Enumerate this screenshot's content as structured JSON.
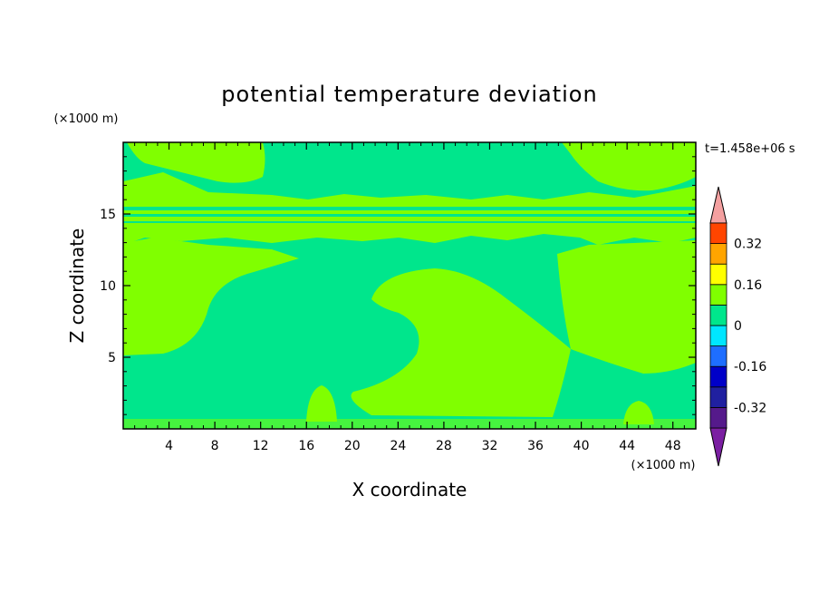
{
  "chart_data": {
    "type": "heatmap",
    "title": "potential temperature deviation",
    "xlabel": "X coordinate",
    "ylabel": "Z coordinate",
    "x_unit": "(×1000 m)",
    "y_unit": "(×1000 m)",
    "time_label": "t=1.458e+06 s",
    "xlim": [
      0,
      50
    ],
    "ylim": [
      0,
      20
    ],
    "x_ticks": [
      4,
      8,
      12,
      16,
      20,
      24,
      28,
      32,
      36,
      40,
      44,
      48
    ],
    "y_ticks": [
      5,
      10,
      15
    ],
    "colorbar": {
      "levels": [
        -0.4,
        -0.32,
        -0.24,
        -0.16,
        -0.08,
        0,
        0.08,
        0.16,
        0.24,
        0.32,
        0.4
      ],
      "labels": [
        "-0.32",
        "-0.16",
        "0",
        "0.16",
        "0.32"
      ],
      "label_values": [
        -0.32,
        -0.16,
        0,
        0.16,
        0.32
      ],
      "colors": [
        "#551a8b",
        "#2020a0",
        "#0000c8",
        "#1e6eff",
        "#00e6ff",
        "#00e68c",
        "#80ff00",
        "#ffff00",
        "#ffa500",
        "#ff4500",
        "#ff2020"
      ],
      "under_color": "#7b1fa2",
      "over_color": "#f4a0a0"
    },
    "fill_colors": {
      "positive": "#80ff00",
      "zero": "#00e68c"
    }
  }
}
